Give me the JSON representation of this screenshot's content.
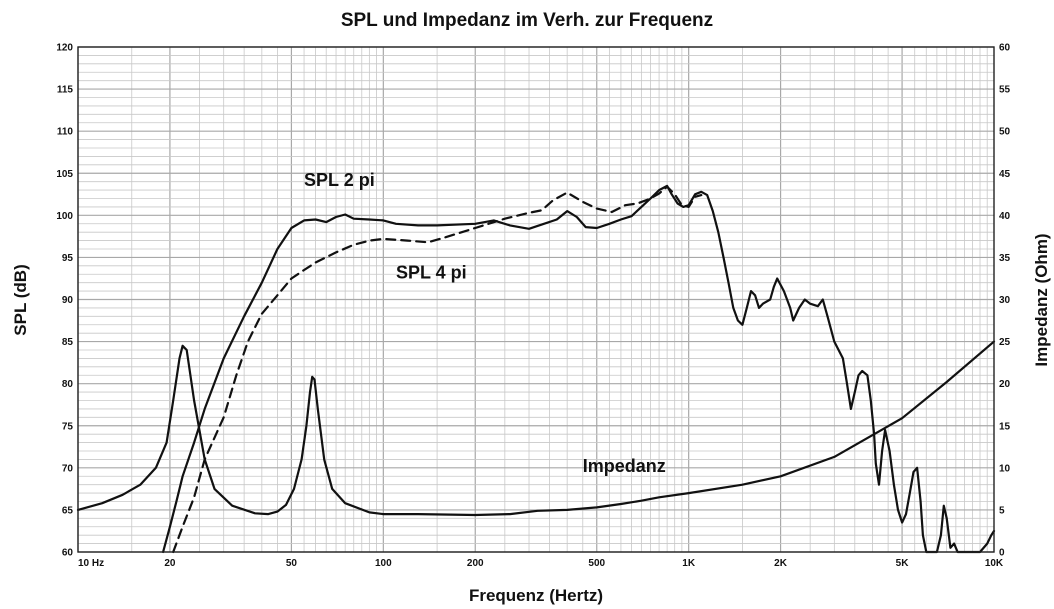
{
  "chart_data": {
    "type": "line",
    "title": "SPL und Impedanz im Verh. zur Frequenz",
    "xlabel": "Frequenz (Hertz)",
    "ylabel": "SPL (dB)",
    "y2label": "Impedanz (Ohm)",
    "xscale": "log",
    "xlim": [
      10,
      10000
    ],
    "ylim": [
      60,
      120
    ],
    "y2lim": [
      0,
      60
    ],
    "grid": true,
    "x_ticks": [
      {
        "value": 10,
        "label": "10  Hz"
      },
      {
        "value": 20,
        "label": "20"
      },
      {
        "value": 50,
        "label": "50"
      },
      {
        "value": 100,
        "label": "100"
      },
      {
        "value": 200,
        "label": "200"
      },
      {
        "value": 500,
        "label": "500"
      },
      {
        "value": 1000,
        "label": "1K"
      },
      {
        "value": 2000,
        "label": "2K"
      },
      {
        "value": 5000,
        "label": "5K"
      },
      {
        "value": 10000,
        "label": "10K"
      }
    ],
    "y_ticks": [
      "60",
      "65",
      "70",
      "75",
      "80",
      "85",
      "90",
      "95",
      "100",
      "105",
      "110",
      "115",
      "120"
    ],
    "y2_ticks": [
      "0",
      "5",
      "10",
      "15",
      "20",
      "25",
      "30",
      "35",
      "40",
      "45",
      "50",
      "55",
      "60"
    ],
    "annotations": [
      {
        "text": "SPL 2 pi",
        "x": 55,
        "y": 103.5
      },
      {
        "text": "SPL 4 pi",
        "x": 110,
        "y": 92.5
      },
      {
        "text": "Impedanz",
        "x": 450,
        "y": 69.5
      }
    ],
    "series": [
      {
        "axis": "left",
        "style": "solid",
        "points": [
          [
            19,
            60
          ],
          [
            20,
            63
          ],
          [
            21,
            66
          ],
          [
            22,
            69
          ],
          [
            24,
            73
          ],
          [
            26,
            77
          ],
          [
            30,
            83
          ],
          [
            35,
            88
          ],
          [
            40,
            92
          ],
          [
            45,
            96
          ],
          [
            50,
            98.5
          ],
          [
            55,
            99.4
          ],
          [
            60,
            99.5
          ],
          [
            65,
            99.2
          ],
          [
            70,
            99.8
          ],
          [
            75,
            100.1
          ],
          [
            80,
            99.6
          ],
          [
            90,
            99.5
          ],
          [
            100,
            99.4
          ],
          [
            110,
            99
          ],
          [
            130,
            98.8
          ],
          [
            150,
            98.8
          ],
          [
            200,
            99
          ],
          [
            230,
            99.4
          ],
          [
            260,
            98.8
          ],
          [
            300,
            98.4
          ],
          [
            330,
            98.9
          ],
          [
            370,
            99.5
          ],
          [
            400,
            100.5
          ],
          [
            430,
            99.8
          ],
          [
            460,
            98.6
          ],
          [
            500,
            98.5
          ],
          [
            550,
            99
          ],
          [
            600,
            99.5
          ],
          [
            650,
            99.9
          ],
          [
            700,
            101
          ],
          [
            750,
            102
          ],
          [
            800,
            103
          ],
          [
            850,
            103.5
          ],
          [
            880,
            102.5
          ],
          [
            920,
            101.4
          ],
          [
            960,
            101
          ],
          [
            1000,
            101.2
          ],
          [
            1050,
            102.5
          ],
          [
            1100,
            102.8
          ],
          [
            1150,
            102.4
          ],
          [
            1200,
            100.5
          ],
          [
            1250,
            98
          ],
          [
            1300,
            95
          ],
          [
            1350,
            92
          ],
          [
            1400,
            89
          ],
          [
            1450,
            87.5
          ],
          [
            1500,
            87
          ],
          [
            1550,
            89
          ],
          [
            1600,
            91
          ],
          [
            1650,
            90.5
          ],
          [
            1700,
            89
          ],
          [
            1750,
            89.5
          ],
          [
            1850,
            90
          ],
          [
            1900,
            91.5
          ],
          [
            1950,
            92.5
          ],
          [
            2050,
            91
          ],
          [
            2150,
            89
          ],
          [
            2200,
            87.5
          ],
          [
            2300,
            89
          ],
          [
            2400,
            90
          ],
          [
            2500,
            89.5
          ],
          [
            2650,
            89.2
          ],
          [
            2750,
            90
          ],
          [
            2850,
            88
          ],
          [
            3000,
            85
          ],
          [
            3200,
            83
          ],
          [
            3300,
            80
          ],
          [
            3400,
            77
          ],
          [
            3500,
            79
          ],
          [
            3600,
            81
          ],
          [
            3700,
            81.5
          ],
          [
            3850,
            81
          ],
          [
            3950,
            78
          ],
          [
            4050,
            74
          ],
          [
            4100,
            70.5
          ],
          [
            4200,
            68
          ],
          [
            4300,
            72
          ],
          [
            4400,
            74.5
          ],
          [
            4550,
            72
          ],
          [
            4700,
            68
          ],
          [
            4850,
            65
          ],
          [
            5000,
            63.5
          ],
          [
            5150,
            64.5
          ],
          [
            5300,
            67
          ],
          [
            5450,
            69.5
          ],
          [
            5600,
            70
          ],
          [
            5750,
            66
          ],
          [
            5850,
            62
          ],
          [
            6000,
            60
          ],
          [
            6500,
            60
          ],
          [
            6700,
            62
          ],
          [
            6850,
            65.5
          ],
          [
            7000,
            64
          ],
          [
            7200,
            60.5
          ],
          [
            7400,
            61
          ],
          [
            7600,
            60
          ],
          [
            9000,
            60
          ],
          [
            9500,
            61
          ],
          [
            9800,
            62
          ],
          [
            10000,
            62.5
          ]
        ]
      },
      {
        "axis": "left",
        "style": "dashed",
        "points": [
          [
            20.5,
            60
          ],
          [
            22,
            63
          ],
          [
            24,
            66.5
          ],
          [
            26,
            71
          ],
          [
            30,
            76
          ],
          [
            33,
            81
          ],
          [
            36,
            85
          ],
          [
            40,
            88.3
          ],
          [
            45,
            90.5
          ],
          [
            50,
            92.5
          ],
          [
            55,
            93.5
          ],
          [
            60,
            94.4
          ],
          [
            70,
            95.6
          ],
          [
            80,
            96.5
          ],
          [
            90,
            97
          ],
          [
            100,
            97.2
          ],
          [
            120,
            97
          ],
          [
            140,
            96.8
          ],
          [
            160,
            97.4
          ],
          [
            200,
            98.5
          ],
          [
            250,
            99.6
          ],
          [
            300,
            100.3
          ],
          [
            330,
            100.6
          ],
          [
            360,
            101.8
          ],
          [
            400,
            102.7
          ],
          [
            450,
            101.6
          ],
          [
            500,
            100.8
          ],
          [
            560,
            100.4
          ],
          [
            620,
            101.2
          ],
          [
            680,
            101.4
          ],
          [
            750,
            102
          ],
          [
            800,
            102.6
          ],
          [
            850,
            103.4
          ],
          [
            900,
            102.5
          ],
          [
            950,
            101.2
          ],
          [
            1000,
            101
          ],
          [
            1050,
            102.2
          ],
          [
            1100,
            102.4
          ]
        ]
      },
      {
        "axis": "right",
        "style": "solid",
        "points": [
          [
            10,
            5
          ],
          [
            12,
            5.8
          ],
          [
            14,
            6.8
          ],
          [
            16,
            8
          ],
          [
            18,
            10
          ],
          [
            19.5,
            13
          ],
          [
            20.5,
            18
          ],
          [
            21.5,
            23
          ],
          [
            22,
            24.5
          ],
          [
            22.7,
            24
          ],
          [
            24,
            18
          ],
          [
            26,
            11
          ],
          [
            28,
            7.5
          ],
          [
            32,
            5.5
          ],
          [
            38,
            4.6
          ],
          [
            42,
            4.5
          ],
          [
            45,
            4.8
          ],
          [
            48,
            5.6
          ],
          [
            51,
            7.5
          ],
          [
            54,
            11
          ],
          [
            56,
            15
          ],
          [
            57.5,
            19
          ],
          [
            58.5,
            20.8
          ],
          [
            59.5,
            20.5
          ],
          [
            61,
            17
          ],
          [
            64,
            11
          ],
          [
            68,
            7.5
          ],
          [
            75,
            5.8
          ],
          [
            90,
            4.7
          ],
          [
            100,
            4.5
          ],
          [
            130,
            4.5
          ],
          [
            200,
            4.4
          ],
          [
            260,
            4.5
          ],
          [
            320,
            4.9
          ],
          [
            400,
            5
          ],
          [
            500,
            5.3
          ],
          [
            600,
            5.7
          ],
          [
            700,
            6.1
          ],
          [
            800,
            6.5
          ],
          [
            1000,
            7
          ],
          [
            1500,
            8
          ],
          [
            2000,
            9
          ],
          [
            3000,
            11.3
          ],
          [
            5000,
            15.9
          ],
          [
            7000,
            20.2
          ],
          [
            10000,
            25
          ]
        ]
      }
    ]
  }
}
